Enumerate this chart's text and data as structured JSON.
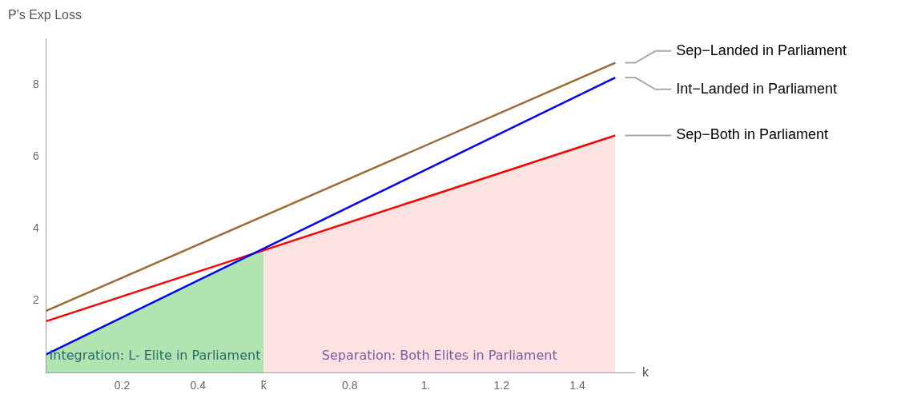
{
  "chart_data": {
    "type": "line",
    "ylabel": "P's Exp Loss",
    "xlabel": "k",
    "xlim": [
      0,
      1.55
    ],
    "ylim": [
      0,
      9.3
    ],
    "xticks": [
      0.2,
      0.4,
      {
        "value": 0.573,
        "label": "k̃"
      },
      0.8,
      {
        "value": 1,
        "label": "1."
      },
      1.2,
      1.4
    ],
    "yticks": [
      2,
      4,
      6,
      8
    ],
    "grid": false,
    "legend": false,
    "marker": "none",
    "line_style": "solid",
    "series": [
      {
        "type": "area",
        "color": "#b0e4b0",
        "x": [
          0,
          0.573
        ],
        "values": [
          0.51,
          3.43
        ]
      },
      {
        "type": "area",
        "color": "#fde2e2",
        "x": [
          0.573,
          1.5
        ],
        "values": [
          3.43,
          6.6
        ]
      },
      {
        "name": "Sep−Landed in Parliament",
        "color": "#9b6a35",
        "x": [
          0,
          1.5
        ],
        "values": [
          1.72,
          8.62
        ]
      },
      {
        "name": "Int−Landed in Parliament",
        "color": "#0000ff",
        "x": [
          0,
          1.5
        ],
        "values": [
          0.51,
          8.21
        ]
      },
      {
        "name": "Sep−Both in Parliament",
        "color": "#ff0000",
        "x": [
          0,
          1.5
        ],
        "values": [
          1.43,
          6.6
        ]
      }
    ],
    "annotations": [
      "Integration: L- Elite in Parliament",
      "Separation: Both Elites in Parliament"
    ]
  }
}
